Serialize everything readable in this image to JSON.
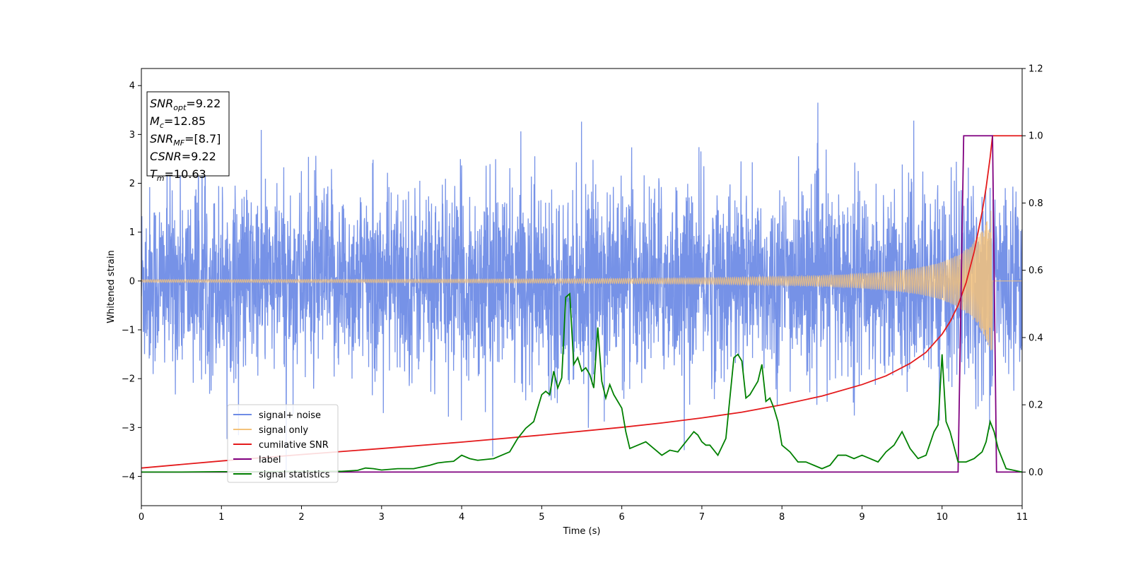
{
  "chart_data": {
    "type": "line",
    "title": "",
    "xlabel": "Time (s)",
    "ylabel": "Whitened strain",
    "y2label": "",
    "xlim": [
      0,
      11
    ],
    "ylim": [
      -4.6,
      4.35
    ],
    "y2lim": [
      -0.1,
      1.2
    ],
    "x_ticks": [
      0,
      1,
      2,
      3,
      4,
      5,
      6,
      7,
      8,
      9,
      10,
      11
    ],
    "y_ticks": [
      -4,
      -3,
      -2,
      -1,
      0,
      1,
      2,
      3,
      4
    ],
    "y_tick_labels": [
      "−4",
      "−3",
      "−2",
      "−1",
      "0",
      "1",
      "2",
      "3",
      "4"
    ],
    "y2_ticks": [
      0.0,
      0.2,
      0.4,
      0.6,
      0.8,
      1.0,
      1.2
    ],
    "y2_tick_labels": [
      "0.0",
      "0.2",
      "0.4",
      "0.6",
      "0.8",
      "1.0",
      "1.2"
    ],
    "grid": false,
    "legend_position": "lower-left",
    "annotation": [
      {
        "base": "SNR",
        "sub": "opt",
        "value": "=9.22"
      },
      {
        "base": "M",
        "sub": "c",
        "value": "=12.85"
      },
      {
        "base": "SNR",
        "sub": "MF",
        "value": "=[8.7]"
      },
      {
        "base": "CSNR",
        "sub": "",
        "value": "=9.22"
      },
      {
        "base": "T",
        "sub": "m",
        "value": "=10.63"
      }
    ],
    "series": [
      {
        "name": "signal+ noise",
        "axis": "left",
        "color": "#6f8ce6",
        "description_values": {
          "noise_sigma": 0.95,
          "x_start": 0,
          "x_end": 11
        }
      },
      {
        "name": "signal only",
        "axis": "left",
        "color": "#f4c27a",
        "chirp": {
          "amplitude_start": 0.02,
          "amplitude_peak": 1.55,
          "t_merge": 10.63,
          "x_end": 11
        }
      },
      {
        "name": "cumilative SNR",
        "axis": "right",
        "color": "#e41a1c",
        "x": [
          0,
          1,
          2,
          3,
          4,
          5,
          6,
          6.5,
          7,
          7.5,
          8,
          8.5,
          9,
          9.3,
          9.6,
          9.8,
          10,
          10.1,
          10.2,
          10.3,
          10.4,
          10.5,
          10.55,
          10.6,
          10.63,
          11
        ],
        "y": [
          0.012,
          0.033,
          0.052,
          0.07,
          0.089,
          0.11,
          0.133,
          0.146,
          0.161,
          0.178,
          0.2,
          0.226,
          0.26,
          0.286,
          0.323,
          0.356,
          0.41,
          0.447,
          0.496,
          0.563,
          0.654,
          0.773,
          0.846,
          0.935,
          1.0,
          1.0
        ]
      },
      {
        "name": "label",
        "axis": "right",
        "color": "#800080",
        "x": [
          0,
          10.2,
          10.27,
          10.63,
          10.68,
          11
        ],
        "y": [
          0,
          0,
          1,
          1,
          0,
          0
        ]
      },
      {
        "name": "signal statistics",
        "axis": "right",
        "color": "#008000",
        "x": [
          0,
          0.5,
          1,
          1.5,
          2,
          2.5,
          2.7,
          2.8,
          2.9,
          3,
          3.2,
          3.4,
          3.6,
          3.7,
          3.8,
          3.9,
          4,
          4.1,
          4.2,
          4.4,
          4.5,
          4.6,
          4.7,
          4.8,
          4.9,
          5,
          5.05,
          5.1,
          5.15,
          5.2,
          5.25,
          5.3,
          5.35,
          5.4,
          5.45,
          5.5,
          5.55,
          5.6,
          5.65,
          5.7,
          5.75,
          5.8,
          5.85,
          5.9,
          5.95,
          6,
          6.05,
          6.1,
          6.2,
          6.3,
          6.4,
          6.5,
          6.6,
          6.7,
          6.8,
          6.9,
          6.95,
          7,
          7.05,
          7.1,
          7.2,
          7.3,
          7.4,
          7.45,
          7.5,
          7.55,
          7.6,
          7.65,
          7.7,
          7.75,
          7.8,
          7.85,
          7.9,
          7.95,
          8,
          8.1,
          8.2,
          8.3,
          8.4,
          8.5,
          8.6,
          8.7,
          8.8,
          8.9,
          9,
          9.1,
          9.2,
          9.3,
          9.4,
          9.5,
          9.6,
          9.7,
          9.8,
          9.9,
          9.95,
          10,
          10.05,
          10.1,
          10.2,
          10.3,
          10.4,
          10.45,
          10.5,
          10.55,
          10.6,
          10.65,
          10.7,
          10.8,
          11
        ],
        "y": [
          0,
          0.0,
          0.001,
          0.001,
          0.002,
          0.002,
          0.005,
          0.012,
          0.01,
          0.006,
          0.01,
          0.01,
          0.02,
          0.027,
          0.03,
          0.032,
          0.05,
          0.04,
          0.035,
          0.04,
          0.05,
          0.06,
          0.1,
          0.13,
          0.15,
          0.23,
          0.24,
          0.23,
          0.3,
          0.25,
          0.28,
          0.52,
          0.53,
          0.32,
          0.34,
          0.3,
          0.31,
          0.29,
          0.25,
          0.43,
          0.27,
          0.22,
          0.26,
          0.23,
          0.21,
          0.19,
          0.12,
          0.07,
          0.08,
          0.09,
          0.07,
          0.05,
          0.065,
          0.06,
          0.09,
          0.12,
          0.11,
          0.09,
          0.08,
          0.08,
          0.05,
          0.1,
          0.34,
          0.35,
          0.33,
          0.22,
          0.23,
          0.25,
          0.27,
          0.32,
          0.21,
          0.22,
          0.19,
          0.15,
          0.08,
          0.06,
          0.03,
          0.03,
          0.02,
          0.01,
          0.02,
          0.05,
          0.05,
          0.04,
          0.05,
          0.04,
          0.03,
          0.06,
          0.08,
          0.12,
          0.07,
          0.04,
          0.05,
          0.12,
          0.14,
          0.35,
          0.15,
          0.12,
          0.03,
          0.03,
          0.04,
          0.05,
          0.06,
          0.09,
          0.15,
          0.12,
          0.07,
          0.01,
          0.0
        ]
      }
    ]
  }
}
